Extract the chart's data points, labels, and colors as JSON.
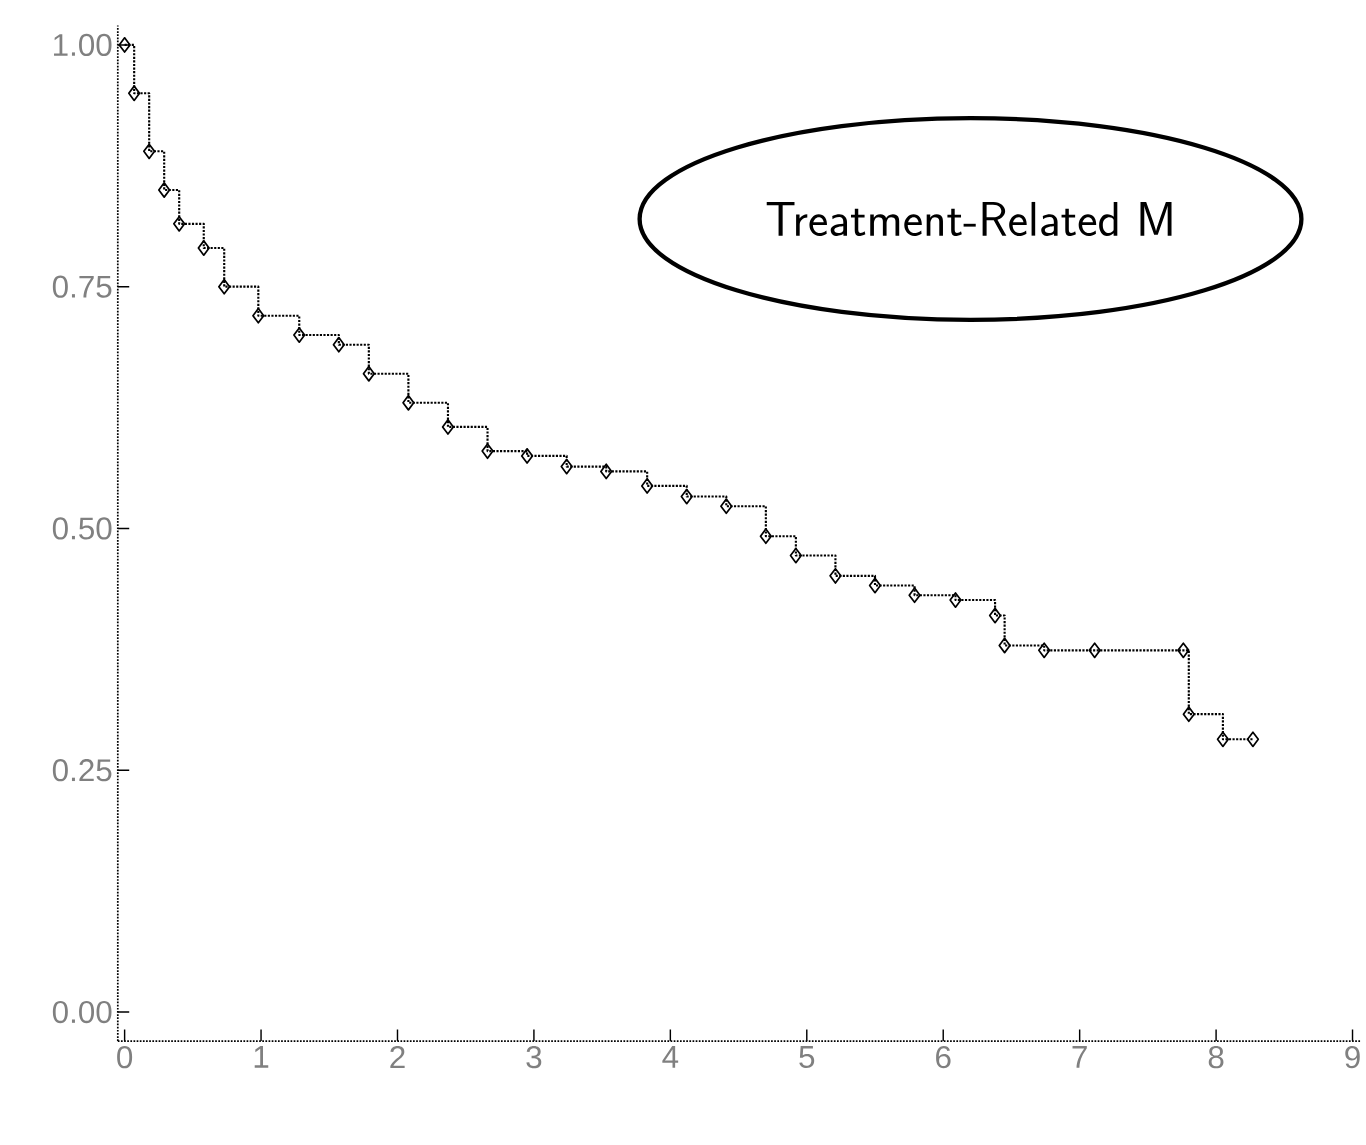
{
  "chart_data": {
    "type": "step",
    "x": [
      0,
      0.07,
      0.18,
      0.29,
      0.4,
      0.58,
      0.73,
      0.98,
      1.28,
      1.57,
      1.79,
      2.08,
      2.37,
      2.66,
      2.95,
      3.24,
      3.53,
      3.83,
      4.12,
      4.41,
      4.7,
      4.92,
      5.21,
      5.5,
      5.79,
      6.09,
      6.38,
      6.45,
      6.74,
      7.11,
      7.76,
      7.8,
      8.05,
      8.27
    ],
    "series": [
      {
        "color": "#000000",
        "values": [
          1.0,
          0.95,
          0.89,
          0.85,
          0.815,
          0.79,
          0.75,
          0.72,
          0.7,
          0.69,
          0.66,
          0.63,
          0.605,
          0.58,
          0.575,
          0.564,
          0.559,
          0.544,
          0.533,
          0.523,
          0.492,
          0.472,
          0.451,
          0.441,
          0.431,
          0.426,
          0.41,
          0.379,
          0.374,
          0.374,
          0.374,
          0.308,
          0.282,
          0.282
        ]
      }
    ],
    "marker": "diamond",
    "line_style": "dotted",
    "xlim": [
      -0.05,
      9.06
    ],
    "ylim": [
      -0.03,
      1.02
    ],
    "xticks": [
      0,
      1,
      2,
      3,
      4,
      5,
      6,
      7,
      8,
      9
    ],
    "yticks": [
      {
        "value": 0,
        "label": "0.00"
      },
      {
        "value": 0.25,
        "label": "0.25"
      },
      {
        "value": 0.5,
        "label": "0.50"
      },
      {
        "value": 0.75,
        "label": "0.75"
      },
      {
        "value": 1,
        "label": "1.00"
      }
    ],
    "annotations": [
      "Treatment-Related M"
    ]
  }
}
